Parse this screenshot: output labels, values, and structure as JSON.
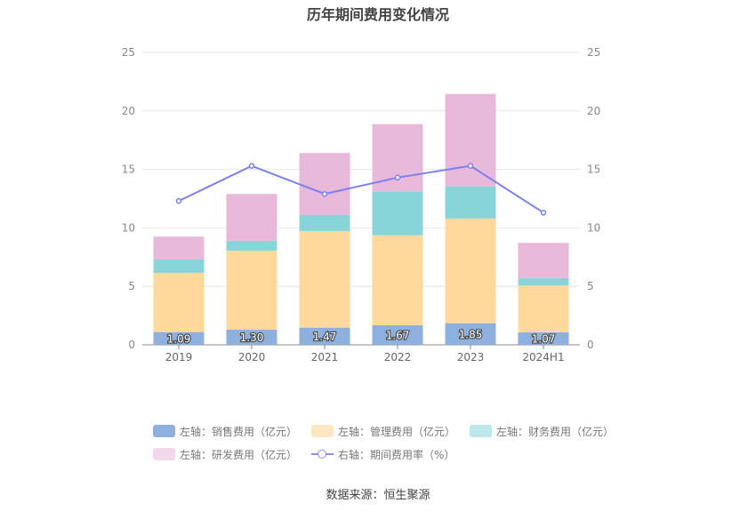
{
  "chart_data": {
    "type": "bar",
    "title": "历年期间费用变化情况",
    "categories": [
      "2019",
      "2020",
      "2021",
      "2022",
      "2023",
      "2024H1"
    ],
    "stacked": true,
    "left_axis": {
      "ylim": [
        0,
        25
      ],
      "ticks": [
        "0",
        "5",
        "10",
        "15",
        "20",
        "25"
      ]
    },
    "right_axis": {
      "ylim": [
        0,
        25
      ],
      "ticks": [
        "0",
        "5",
        "10",
        "15",
        "20",
        "25"
      ]
    },
    "grid": true,
    "legend_position": "bottom",
    "series": [
      {
        "name": "左轴：销售费用（亿元）",
        "type": "bar",
        "axis": "left",
        "color": "#8eb0df",
        "values": [
          1.09,
          1.3,
          1.47,
          1.67,
          1.85,
          1.07
        ],
        "labels": [
          "1.09",
          "1.30",
          "1.47",
          "1.67",
          "1.85",
          "1.07"
        ]
      },
      {
        "name": "左轴：管理费用（亿元）",
        "type": "bar",
        "axis": "left",
        "color": "#ffd89b",
        "values": [
          5.06,
          6.75,
          8.25,
          7.7,
          8.95,
          4.0
        ]
      },
      {
        "name": "左轴：财务费用（亿元）",
        "type": "bar",
        "axis": "left",
        "color": "#88d5d9",
        "values": [
          1.15,
          0.85,
          1.38,
          3.75,
          2.75,
          0.65
        ]
      },
      {
        "name": "左轴：研发费用（亿元）",
        "type": "bar",
        "axis": "left",
        "color": "#e8b9db",
        "values": [
          1.95,
          4.0,
          5.3,
          5.75,
          7.9,
          3.0
        ]
      },
      {
        "name": "右轴：期间费用率（%）",
        "type": "line",
        "axis": "right",
        "color": "#7b80f0",
        "values": [
          12.3,
          15.3,
          12.9,
          14.3,
          15.3,
          11.3
        ]
      }
    ],
    "legend_swatch_colors": [
      "#8eb0df",
      "#fde6c2",
      "#bde8ea",
      "#f3d8eb",
      "#8a8ef5"
    ]
  },
  "source": "数据来源：恒生聚源"
}
